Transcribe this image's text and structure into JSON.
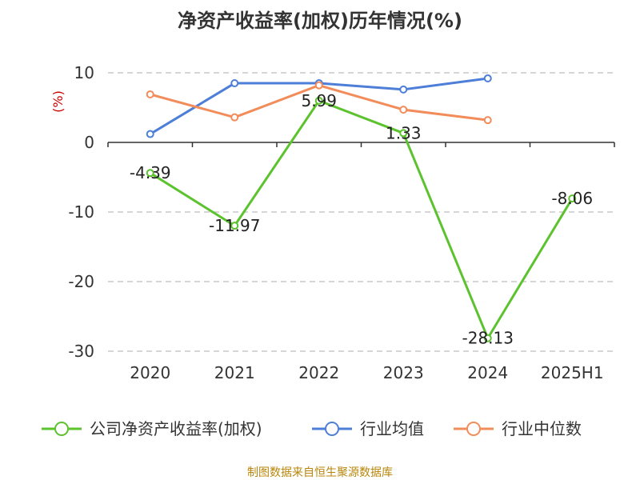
{
  "chart_data": {
    "type": "line",
    "title": "净资产收益率(加权)历年情况(%)",
    "ylabel": "(%)",
    "xlabel": "",
    "categories": [
      "2020",
      "2021",
      "2022",
      "2023",
      "2024",
      "2025H1"
    ],
    "ylim": [
      -30,
      10
    ],
    "yticks": [
      10,
      0,
      -10,
      -20,
      -30
    ],
    "grid": true,
    "legend_position": "bottom",
    "series": [
      {
        "name": "公司净资产收益率(加权)",
        "color": "#5cc22e",
        "values": [
          -4.39,
          -11.97,
          5.99,
          1.33,
          -28.13,
          -8.06
        ],
        "labels": [
          "-4.39",
          "-11.97",
          "5.99",
          "1.33",
          "-28.13",
          "-8.06"
        ]
      },
      {
        "name": "行业均值",
        "color": "#4e7fd8",
        "values": [
          1.2,
          8.5,
          8.5,
          7.6,
          9.2,
          null
        ]
      },
      {
        "name": "行业中位数",
        "color": "#f28c5a",
        "values": [
          6.9,
          3.6,
          8.2,
          4.7,
          3.2,
          null
        ]
      }
    ]
  },
  "source": "制图数据来自恒生聚源数据库"
}
